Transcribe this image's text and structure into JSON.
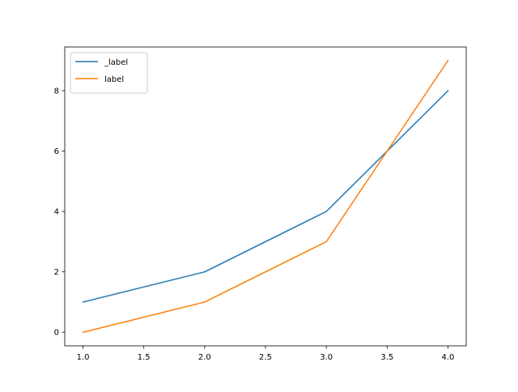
{
  "chart_data": {
    "type": "line",
    "title": "",
    "xlabel": "",
    "ylabel": "",
    "xlim": [
      0.85,
      4.15
    ],
    "ylim": [
      -0.45,
      9.45
    ],
    "xticks": [
      1.0,
      1.5,
      2.0,
      2.5,
      3.0,
      3.5,
      4.0
    ],
    "xtick_labels": [
      "1.0",
      "1.5",
      "2.0",
      "2.5",
      "3.0",
      "3.5",
      "4.0"
    ],
    "yticks": [
      0,
      2,
      4,
      6,
      8
    ],
    "ytick_labels": [
      "0",
      "2",
      "4",
      "6",
      "8"
    ],
    "grid": false,
    "legend_position": "upper-left",
    "series": [
      {
        "name": "_label",
        "color": "#1f77b4",
        "x": [
          1,
          2,
          3,
          4
        ],
        "y": [
          1,
          2,
          4,
          8
        ]
      },
      {
        "name": "label",
        "color": "#ff7f0e",
        "x": [
          1,
          2,
          3,
          4
        ],
        "y": [
          0,
          1,
          3,
          9
        ]
      }
    ]
  }
}
